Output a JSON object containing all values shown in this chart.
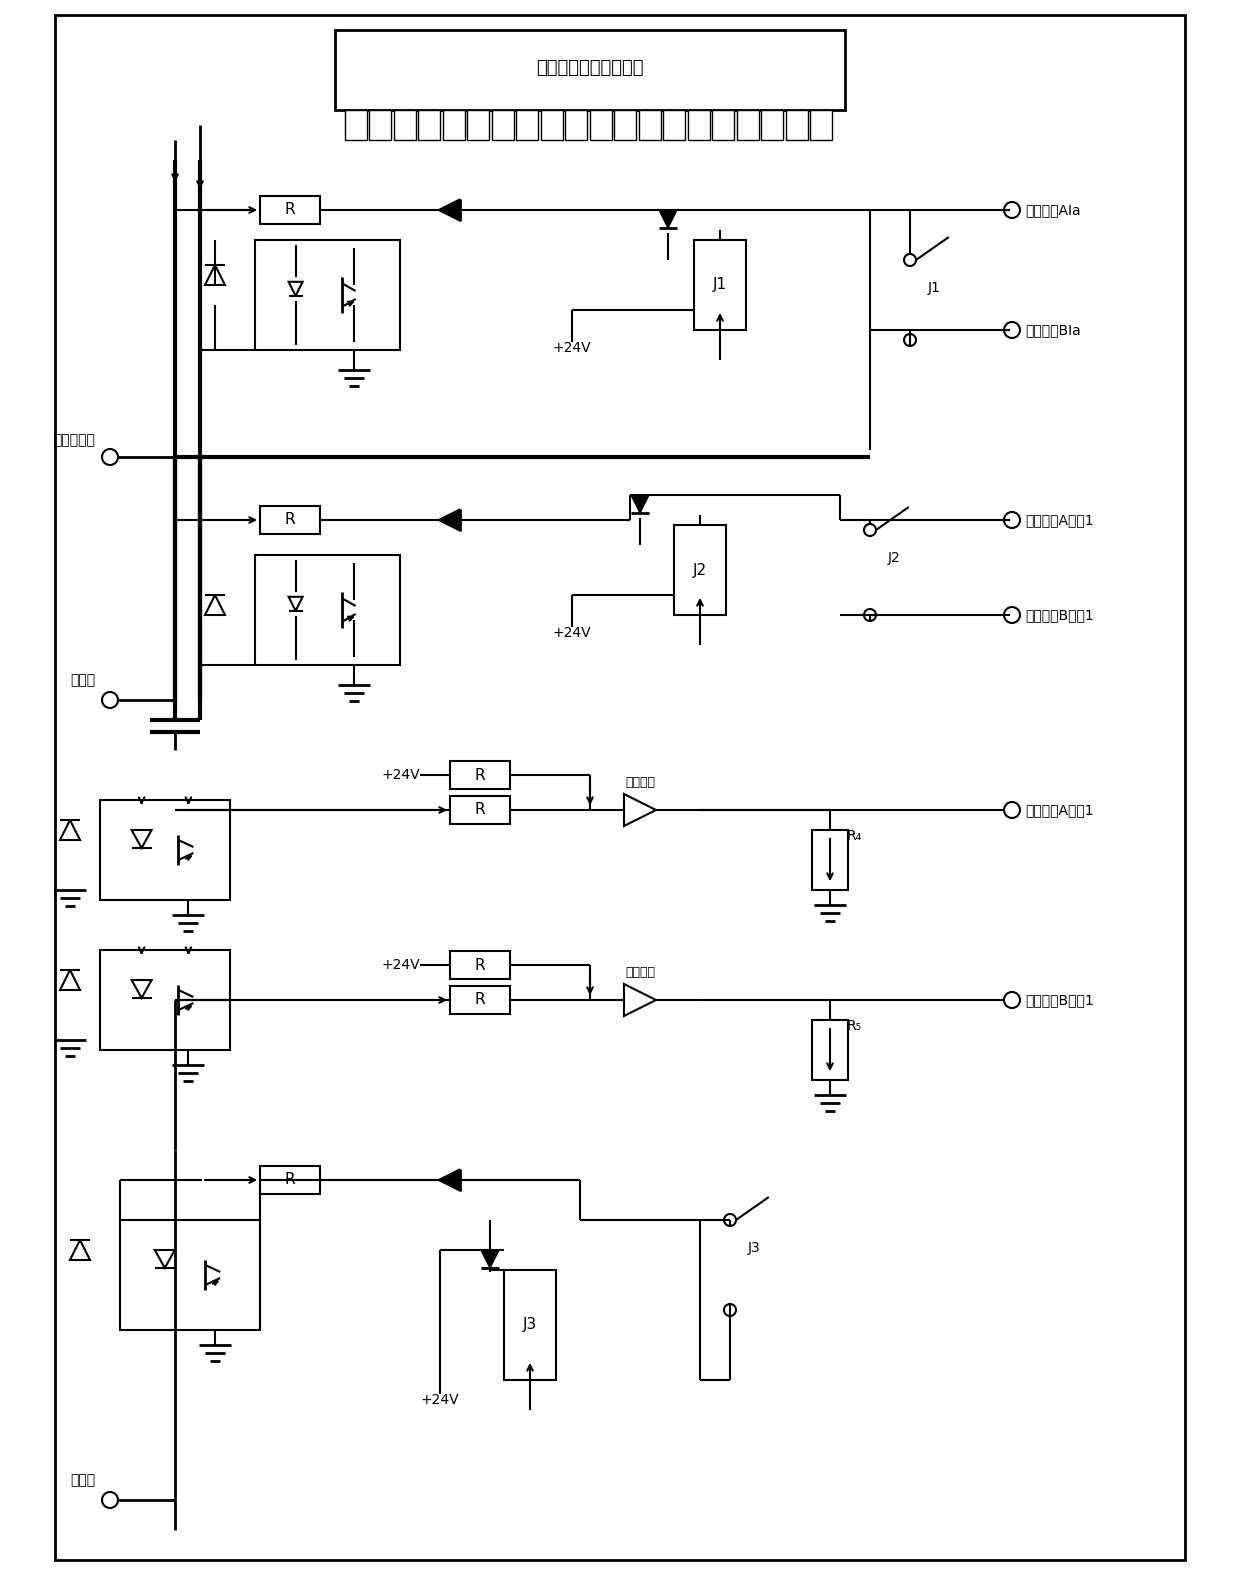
{
  "fig_width": 12.4,
  "fig_height": 15.93,
  "bg_color": "#ffffff",
  "line_color": "#000000",
  "labels": {
    "card_title": "可编程开入开出控制卡",
    "input_analog": "输入模拟量",
    "input_switch": "开入量",
    "output_switch": "开出量",
    "prot_A1a": "保护装置AIa",
    "prot_B1a": "保护装置BIa",
    "prot_A_in1": "保护装置A开入1",
    "prot_B_in1": "保护装置B开入1",
    "prot_A_out1": "保护装置A开出1",
    "prot_B_out1": "保护装置B开出1",
    "out_channel": "开出通道",
    "plus24v": "+24V",
    "J1": "J1",
    "J2": "J2",
    "J3": "J3",
    "R": "R",
    "R4": "R₄",
    "R5": "R₅"
  }
}
